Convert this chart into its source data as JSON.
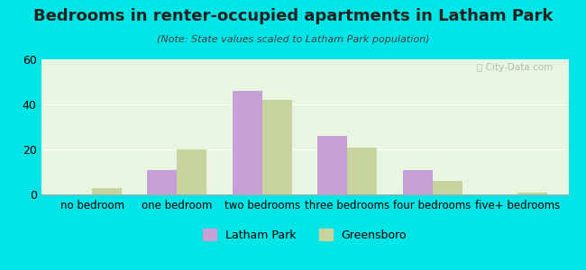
{
  "title": "Bedrooms in renter-occupied apartments in Latham Park",
  "subtitle": "(Note: State values scaled to Latham Park population)",
  "categories": [
    "no bedroom",
    "one bedroom",
    "two bedrooms",
    "three bedrooms",
    "four bedrooms",
    "five+ bedrooms"
  ],
  "latham_park": [
    0,
    11,
    46,
    26,
    11,
    0
  ],
  "greensboro": [
    3,
    20,
    42,
    21,
    6,
    1
  ],
  "latham_color": "#c8a0d8",
  "greensboro_color": "#c8d4a0",
  "background_outer": "#00e5e5",
  "background_inner_left": "#e8f5e0",
  "background_inner_right": "#e0eef5",
  "ylim": [
    0,
    60
  ],
  "yticks": [
    0,
    20,
    40,
    60
  ],
  "bar_width": 0.35,
  "legend_latham": "Latham Park",
  "legend_greensboro": "Greensboro"
}
